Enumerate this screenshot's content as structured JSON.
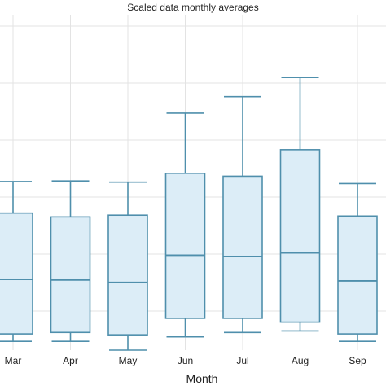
{
  "chart_data": {
    "type": "box",
    "title": "Scaled data monthly averages",
    "xlabel": "Month",
    "ylabel": "",
    "ylim": [
      0,
      1
    ],
    "grid": true,
    "colors": {
      "box_fill": "#dcedf7",
      "box_stroke": "#4f8fac",
      "grid": "#e3e3e3"
    },
    "categories": [
      "Mar",
      "Apr",
      "May",
      "Jun",
      "Jul",
      "Aug",
      "Sep"
    ],
    "boxes": [
      {
        "label": "Mar",
        "whisker_low": 0.03,
        "q1": 0.055,
        "median": 0.24,
        "q3": 0.465,
        "whisker_high": 0.572
      },
      {
        "label": "Apr",
        "whisker_low": 0.03,
        "q1": 0.06,
        "median": 0.238,
        "q3": 0.452,
        "whisker_high": 0.574
      },
      {
        "label": "May",
        "whisker_low": 0.0,
        "q1": 0.052,
        "median": 0.23,
        "q3": 0.458,
        "whisker_high": 0.57
      },
      {
        "label": "Jun",
        "whisker_low": 0.045,
        "q1": 0.108,
        "median": 0.322,
        "q3": 0.6,
        "whisker_high": 0.804
      },
      {
        "label": "Jul",
        "whisker_low": 0.06,
        "q1": 0.108,
        "median": 0.318,
        "q3": 0.59,
        "whisker_high": 0.86
      },
      {
        "label": "Aug",
        "whisker_low": 0.065,
        "q1": 0.095,
        "median": 0.33,
        "q3": 0.68,
        "whisker_high": 0.925
      },
      {
        "label": "Sep",
        "whisker_low": 0.03,
        "q1": 0.055,
        "median": 0.235,
        "q3": 0.455,
        "whisker_high": 0.565
      }
    ]
  }
}
